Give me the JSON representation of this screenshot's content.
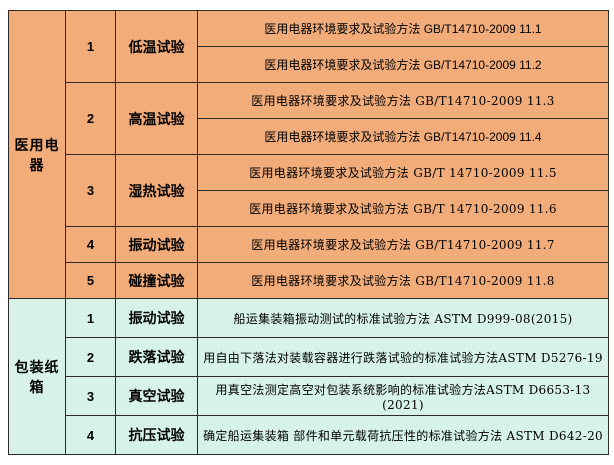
{
  "table": {
    "description_columns": [
      "category",
      "index",
      "test_name",
      "standard"
    ],
    "sections": [
      {
        "category": "医用电器",
        "bg_color": "#F2AC7A",
        "groups": [
          {
            "index": "1",
            "test": "低温试验",
            "standards": [
              "医用电器环境要求及试验方法 GB/T14710-2009 11.1",
              "医用电器环境要求及试验方法 GB/T14710-2009 11.2"
            ]
          },
          {
            "index": "2",
            "test": "高温试验",
            "standards": [
              "医用电器环境要求及试验方法 GB/T14710-2009 11.3",
              "医用电器环境要求及试验方法 GB/T14710-2009 11.4"
            ]
          },
          {
            "index": "3",
            "test": "湿热试验",
            "standards": [
              "医用电器环境要求及试验方法 GB/T 14710-2009 11.5",
              "医用电器环境要求及试验方法 GB/T 14710-2009 11.6"
            ]
          },
          {
            "index": "4",
            "test": "振动试验",
            "standards": [
              "医用电器环境要求及试验方法 GB/T14710-2009 11.7"
            ]
          },
          {
            "index": "5",
            "test": "碰撞试验",
            "standards": [
              "医用电器环境要求及试验方法 GB/T14710-2009 11.8"
            ]
          }
        ]
      },
      {
        "category": "包装纸箱",
        "bg_color": "#D7F3E9",
        "groups": [
          {
            "index": "1",
            "test": "振动试验",
            "standards": [
              "船运集装箱振动测试的标准试验方法 ASTM D999-08(2015)"
            ]
          },
          {
            "index": "2",
            "test": "跌落试验",
            "standards": [
              "用自由下落法对装载容器进行跌落试验的标准试验方法ASTM D5276-19"
            ]
          },
          {
            "index": "3",
            "test": "真空试验",
            "standards": [
              "用真空法测定高空对包装系统影响的标准试验方法ASTM D6653-13 (2021)"
            ]
          },
          {
            "index": "4",
            "test": "抗压试验",
            "standards": [
              "确定船运集装箱 部件和单元载荷抗压性的标准试验方法 ASTM D642-20"
            ]
          }
        ]
      }
    ]
  },
  "colors": {
    "medical_section_bg": "#F2AC7A",
    "packaging_section_bg": "#D7F3E9",
    "border": "#2E2A26",
    "text": "#000000",
    "page_bg": "#FFFFFF"
  }
}
